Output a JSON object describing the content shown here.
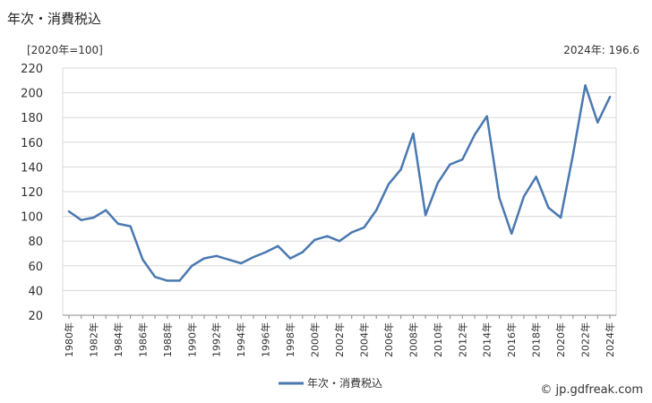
{
  "header": {
    "title": "年次・消費税込",
    "unit": "[2020年=100]",
    "latest": "2024年: 196.6"
  },
  "footer": {
    "source": "© jp.gdfreak.com"
  },
  "colors": {
    "series": "#4a78b0",
    "grid": "#d9d9d9",
    "axis": "#888888"
  },
  "chart_data": {
    "type": "line",
    "title": "",
    "xlabel": "",
    "ylabel": "",
    "ylim": [
      20,
      220
    ],
    "yticks": [
      20,
      40,
      60,
      80,
      100,
      120,
      140,
      160,
      180,
      200,
      220
    ],
    "grid": true,
    "legend_position": "bottom",
    "x": [
      1980,
      1981,
      1982,
      1983,
      1984,
      1985,
      1986,
      1987,
      1988,
      1989,
      1990,
      1991,
      1992,
      1993,
      1994,
      1995,
      1996,
      1997,
      1998,
      1999,
      2000,
      2001,
      2002,
      2003,
      2004,
      2005,
      2006,
      2007,
      2008,
      2009,
      2010,
      2011,
      2012,
      2013,
      2014,
      2015,
      2016,
      2017,
      2018,
      2019,
      2020,
      2021,
      2022,
      2023,
      2024
    ],
    "xtick_labels": [
      "1980年",
      "1982年",
      "1984年",
      "1986年",
      "1988年",
      "1990年",
      "1992年",
      "1994年",
      "1996年",
      "1998年",
      "2000年",
      "2002年",
      "2004年",
      "2006年",
      "2008年",
      "2010年",
      "2012年",
      "2014年",
      "2016年",
      "2018年",
      "2020年",
      "2022年",
      "2024年"
    ],
    "series": [
      {
        "name": "年次・消費税込",
        "values": [
          104,
          97,
          99,
          105,
          94,
          92,
          65,
          51,
          48,
          48,
          60,
          66,
          68,
          65,
          62,
          67,
          71,
          76,
          66,
          71,
          81,
          84,
          80,
          87,
          91,
          105,
          126,
          138,
          167,
          101,
          127,
          142,
          146,
          166,
          181,
          115,
          86,
          116,
          132,
          107,
          99,
          150,
          206,
          176,
          196.6
        ]
      }
    ]
  }
}
